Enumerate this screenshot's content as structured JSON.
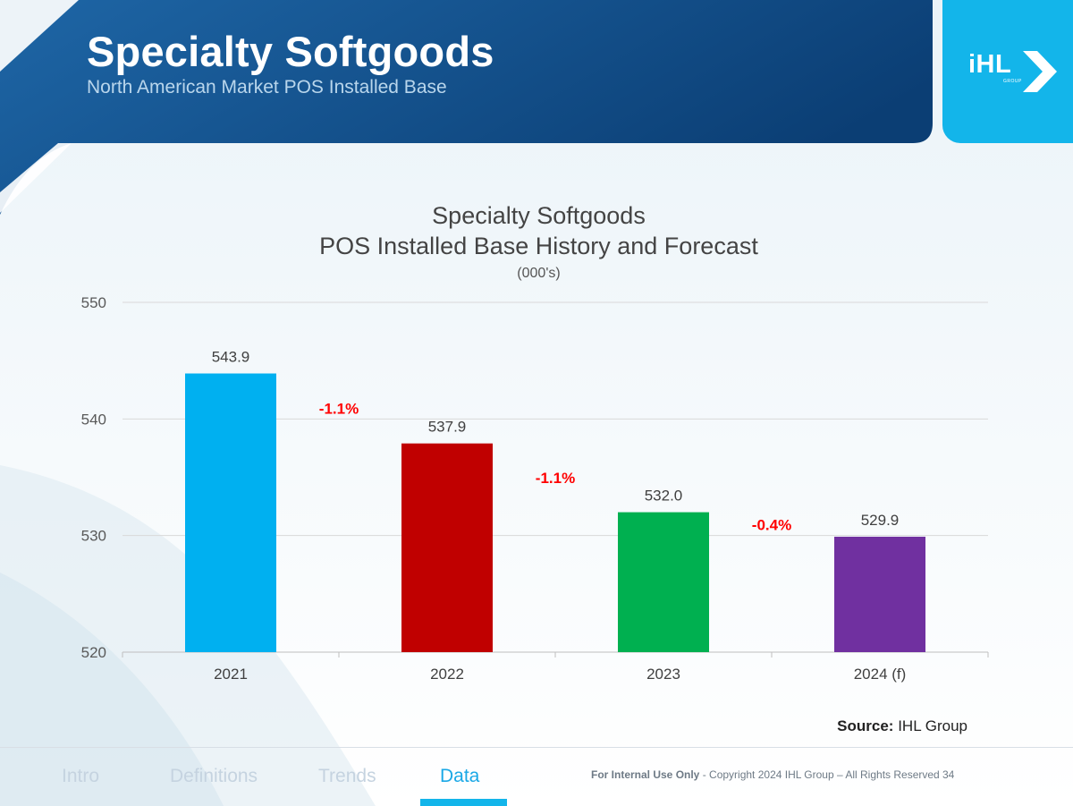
{
  "header": {
    "title": "Specialty Softgoods",
    "subtitle": "North American Market POS Installed Base"
  },
  "logo": {
    "text": "iHL",
    "small": "GROUP"
  },
  "chart_data": {
    "type": "bar",
    "title": "Specialty Softgoods",
    "subtitle": "POS Installed Base History and Forecast",
    "unit_note": "(000's)",
    "categories": [
      "2021",
      "2022",
      "2023",
      "2024 (f)"
    ],
    "values": [
      543.9,
      537.9,
      532.0,
      529.9
    ],
    "value_labels": [
      "543.9",
      "537.9",
      "532.0",
      "529.9"
    ],
    "colors": [
      "#00b0f0",
      "#c00000",
      "#00b050",
      "#7030a0"
    ],
    "ylim": [
      520,
      550
    ],
    "yticks": [
      "520",
      "530",
      "540",
      "550"
    ],
    "change_labels": [
      "-1.1%",
      "-1.1%",
      "-0.4%"
    ],
    "change_color": "#ff0000",
    "xlabel": "",
    "ylabel": "",
    "grid": true
  },
  "source": {
    "label": "Source:",
    "value": "IHL Group"
  },
  "footer": {
    "nav": [
      "Intro",
      "Definitions",
      "Trends",
      "Data"
    ],
    "active_tab": "Data",
    "internal": "For Internal Use Only",
    "copyright": " - Copyright 2024 IHL Group – All Rights Reserved",
    "page_number": "34"
  }
}
